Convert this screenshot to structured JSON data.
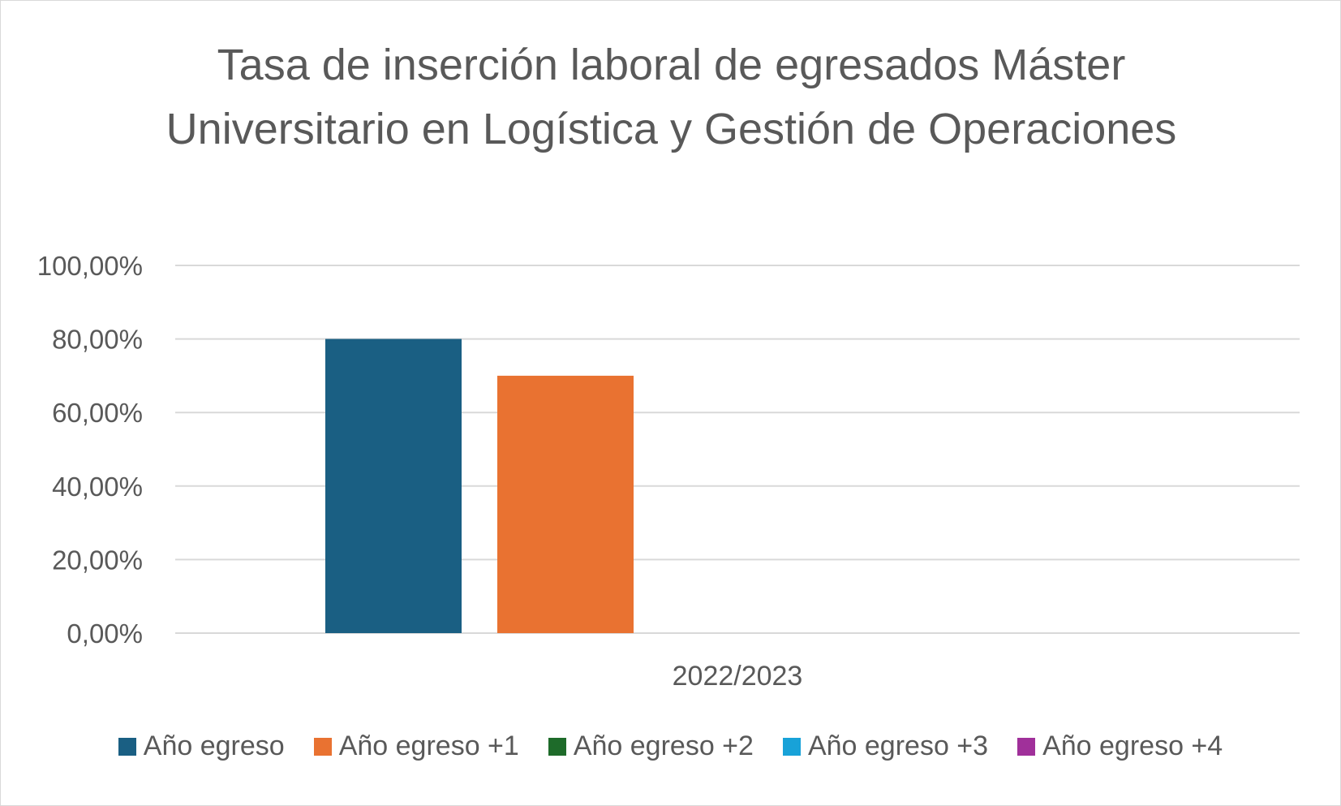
{
  "chart_data": {
    "type": "bar",
    "title": "Tasa de inserción laboral de egresados Máster Universitario en Logística y Gestión de Operaciones",
    "categories": [
      "2022/2023"
    ],
    "series": [
      {
        "name": "Año egreso",
        "color": "#1a5f83",
        "values": [
          0.8
        ]
      },
      {
        "name": "Año egreso +1",
        "color": "#e97231",
        "values": [
          0.7
        ]
      },
      {
        "name": "Año egreso +2",
        "color": "#1e6b2a",
        "values": [
          null
        ]
      },
      {
        "name": "Año egreso +3",
        "color": "#18a2d8",
        "values": [
          null
        ]
      },
      {
        "name": "Año egreso +4",
        "color": "#a0309a",
        "values": [
          null
        ]
      }
    ],
    "y_ticks": [
      "0,00%",
      "20,00%",
      "40,00%",
      "60,00%",
      "80,00%",
      "100,00%"
    ],
    "ylim": [
      0,
      1
    ],
    "grid": true,
    "legend_position": "bottom",
    "gridline_color": "#d9d9d9",
    "text_color": "#595959"
  }
}
